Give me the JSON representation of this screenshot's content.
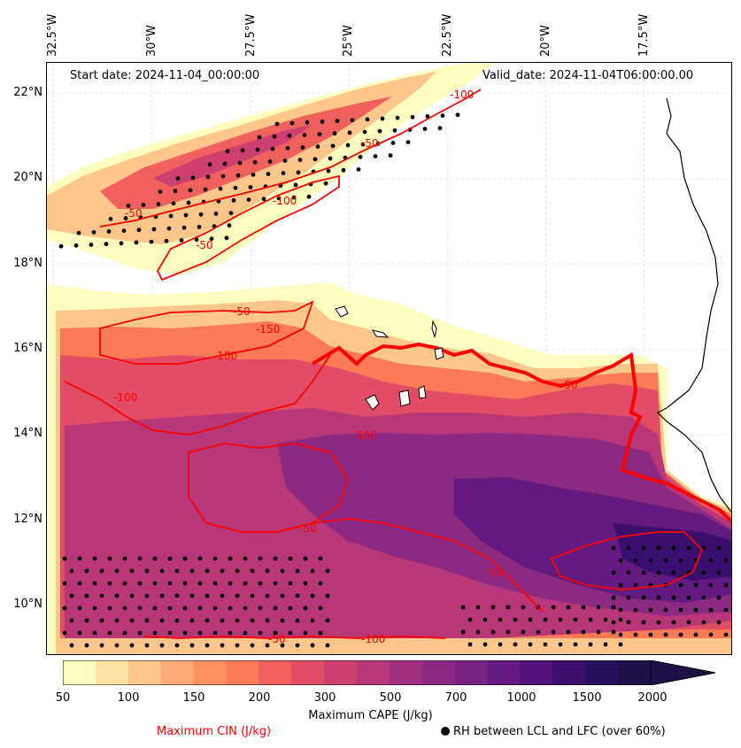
{
  "map": {
    "lon_labels": [
      "32.5°W",
      "30°W",
      "27.5°W",
      "25°W",
      "22.5°W",
      "20°W",
      "17.5°W"
    ],
    "lat_labels": [
      "22°N",
      "20°N",
      "18°N",
      "16°N",
      "14°N",
      "12°N",
      "10°N"
    ],
    "start_date": "Start date: 2024-11-04_00:00:00",
    "valid_date": "Valid_date: 2024-11-04T06:00:00.00",
    "contour_labels": [
      "-50",
      "-100",
      "-150"
    ],
    "colors": {
      "cin_contour": "#ff0000",
      "coastline": "#000000",
      "stipple": "#000000"
    }
  },
  "colorbar": {
    "ticks": [
      "50",
      "100",
      "150",
      "200",
      "300",
      "500",
      "700",
      "1000",
      "1500",
      "2000"
    ],
    "title": "Maximum CAPE (J/kg)",
    "colors": [
      "#fcfdbf",
      "#fde2a3",
      "#fec68a",
      "#feaa74",
      "#fe9161",
      "#fa7a55",
      "#f0605d",
      "#e14d66",
      "#cd4071",
      "#b73779",
      "#a0307e",
      "#8c2981",
      "#782281",
      "#641a80",
      "#50127b",
      "#3b0f70",
      "#26125a",
      "#1d1147"
    ]
  },
  "legend": {
    "cin": "Maximum CIN (J/kg)",
    "rh": "RH between LCL and LFC (over 60%)"
  }
}
